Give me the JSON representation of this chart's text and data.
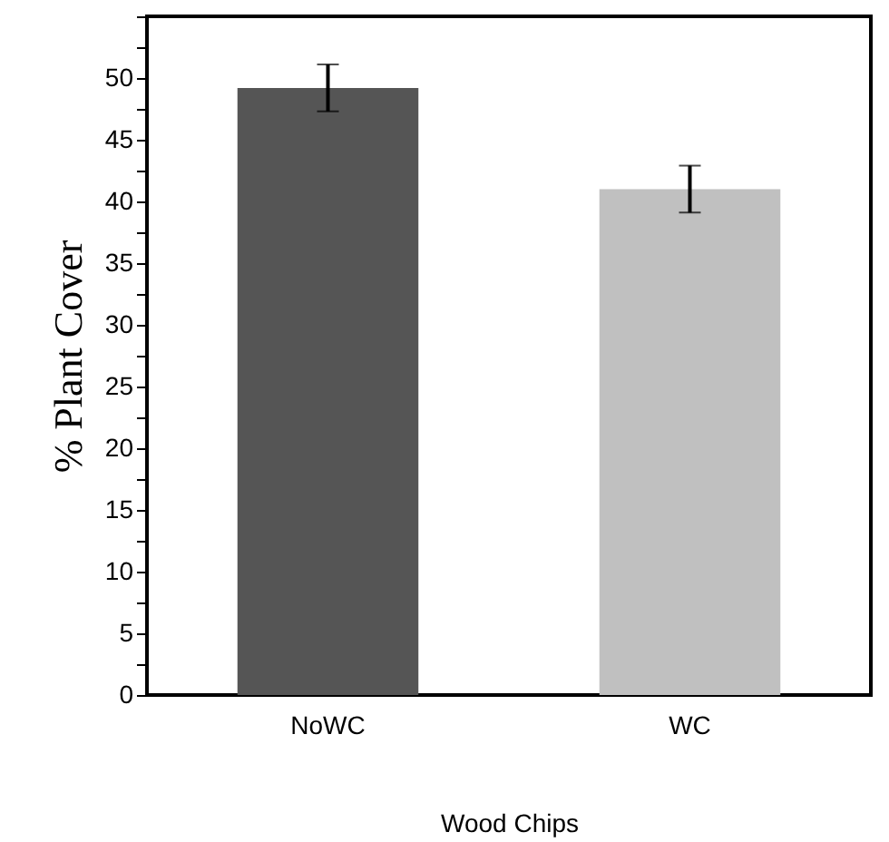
{
  "chart_data": {
    "type": "bar",
    "xlabel": "Wood Chips",
    "ylabel": "% Plant Cover",
    "categories": [
      "NoWC",
      "WC"
    ],
    "values": [
      49.2,
      41.0
    ],
    "colors": [
      "#555555",
      "#c0c0c0"
    ],
    "errors": [
      1.9,
      1.9
    ],
    "ylim": [
      0,
      55
    ],
    "yticks": [
      0,
      {
        "value": 2.5,
        "label": null
      },
      5,
      {
        "value": 7.5,
        "label": null
      },
      10,
      {
        "value": 12.5,
        "label": null
      },
      15,
      {
        "value": 17.5,
        "label": null
      },
      20,
      {
        "value": 22.5,
        "label": null
      },
      25,
      {
        "value": 27.5,
        "label": null
      },
      30,
      {
        "value": 32.5,
        "label": null
      },
      35,
      {
        "value": 37.5,
        "label": null
      },
      40,
      {
        "value": 42.5,
        "label": null
      },
      45,
      {
        "value": 47.5,
        "label": null
      },
      50,
      {
        "value": 52.5,
        "label": null
      },
      {
        "value": 55,
        "label": null
      }
    ],
    "grid": false
  }
}
